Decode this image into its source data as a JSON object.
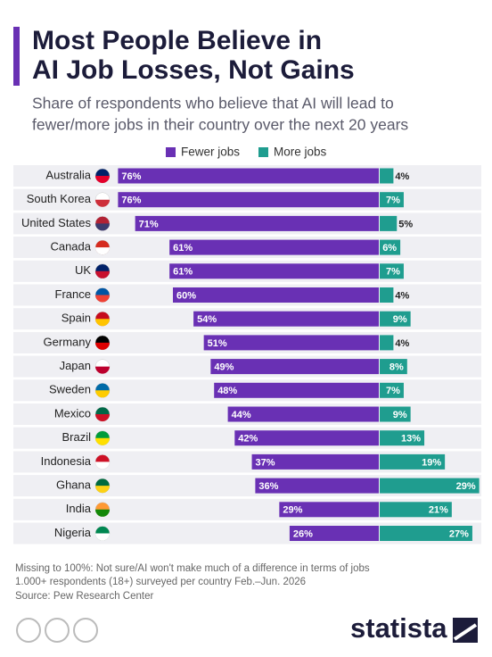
{
  "chart_data": {
    "type": "diverging-bar",
    "title": [
      "Most People Believe in",
      "AI Job Losses, Not Gains"
    ],
    "subtitle": [
      "Share of respondents who believe that AI will lead to",
      "fewer/more jobs in their country over the next 20 years"
    ],
    "categories": [
      "Australia",
      "South Korea",
      "United States",
      "Canada",
      "UK",
      "France",
      "Spain",
      "Germany",
      "Japan",
      "Sweden",
      "Mexico",
      "Brazil",
      "Indonesia",
      "Ghana",
      "India",
      "Nigeria"
    ],
    "series": [
      {
        "name": "Fewer jobs",
        "color": "#6930b4",
        "values": [
          76,
          76,
          71,
          61,
          61,
          60,
          54,
          51,
          49,
          48,
          44,
          42,
          37,
          36,
          29,
          26
        ],
        "value_labels": [
          "76%",
          "76%",
          "71%",
          "61%",
          "61%",
          "60%",
          "54%",
          "51%",
          "49%",
          "48%",
          "44%",
          "42%",
          "37%",
          "36%",
          "29%",
          "26%"
        ]
      },
      {
        "name": "More jobs",
        "color": "#1f9d8f",
        "values": [
          4,
          7,
          5,
          6,
          7,
          4,
          9,
          4,
          8,
          7,
          9,
          13,
          19,
          29,
          21,
          27
        ],
        "value_labels": [
          "4%",
          "7%",
          "5%",
          "6%",
          "7%",
          "4%",
          "9%",
          "4%",
          "8%",
          "7%",
          "9%",
          "13%",
          "19%",
          "29%",
          "21%",
          "27%"
        ]
      }
    ],
    "notes": [
      "Missing to 100%: Not sure/AI won't make much of a difference in terms of jobs",
      "1.000+ respondents (18+) surveyed per country Feb.–Jun. 2026"
    ],
    "source": "Source: Pew Research Center",
    "logo": "statista"
  }
}
